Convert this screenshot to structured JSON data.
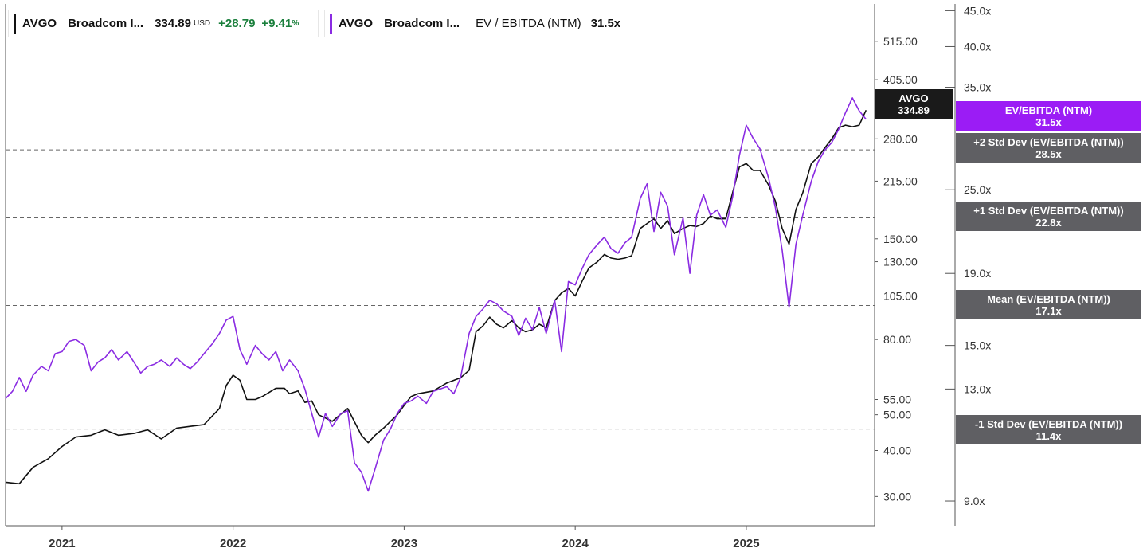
{
  "legend": {
    "price": {
      "ticker": "AVGO",
      "name": "Broadcom I...",
      "value": "334.89",
      "currency": "USD",
      "change": "+28.79",
      "change_pct": "+9.41",
      "pct_sign": "%",
      "color": "#111111"
    },
    "ev": {
      "ticker": "AVGO",
      "name": "Broadcom I...",
      "metric": "EV / EBITDA (NTM)",
      "value": "31.5x",
      "color": "#8a2be2"
    }
  },
  "tags": {
    "price": {
      "line1": "AVGO",
      "line2": "334.89"
    },
    "ev": {
      "line1": "EV/EBITDA (NTM)",
      "line2": "31.5x"
    },
    "sd_plus2": {
      "line1": "+2 Std Dev (EV/EBITDA (NTM))",
      "line2": "28.5x"
    },
    "sd_plus1": {
      "line1": "+1 Std Dev (EV/EBITDA (NTM))",
      "line2": "22.8x"
    },
    "mean": {
      "line1": "Mean (EV/EBITDA (NTM))",
      "line2": "17.1x"
    },
    "sd_minus1": {
      "line1": "-1 Std Dev (EV/EBITDA (NTM))",
      "line2": "11.4x"
    }
  },
  "colors": {
    "price": "#111111",
    "ev": "#8a2be2",
    "ev_tag": "#9b1cf5",
    "grey_tag": "#5f5f63",
    "dark_tag": "#1a1a1a"
  },
  "chart_data": {
    "type": "line",
    "x_labels": [
      "2021",
      "2022",
      "2023",
      "2024",
      "2025"
    ],
    "x_range": [
      2020.67,
      2025.75
    ],
    "left_axis": {
      "scale": "log",
      "ticks": [
        "515.00",
        "405.00",
        "280.00",
        "215.00",
        "150.00",
        "130.00",
        "105.00",
        "80.00",
        "55.00",
        "50.00",
        "40.00",
        "30.00"
      ],
      "range": [
        25,
        650
      ]
    },
    "right_axis": {
      "scale": "log",
      "ticks": [
        "45.0x",
        "40.0x",
        "35.0x",
        "25.0x",
        "19.0x",
        "15.0x",
        "13.0x",
        "9.0x"
      ],
      "range": [
        8.3,
        46
      ]
    },
    "series": [
      {
        "name": "AVGO",
        "axis": "left",
        "points": [
          [
            2020.67,
            32.8
          ],
          [
            2020.75,
            32.5
          ],
          [
            2020.83,
            36
          ],
          [
            2020.92,
            38
          ],
          [
            2021.0,
            41
          ],
          [
            2021.08,
            43.5
          ],
          [
            2021.17,
            44
          ],
          [
            2021.25,
            45.5
          ],
          [
            2021.33,
            44
          ],
          [
            2021.42,
            44.5
          ],
          [
            2021.5,
            45.5
          ],
          [
            2021.58,
            43
          ],
          [
            2021.67,
            46
          ],
          [
            2021.75,
            46.5
          ],
          [
            2021.83,
            47
          ],
          [
            2021.92,
            52
          ],
          [
            2021.96,
            60
          ],
          [
            2022.0,
            64
          ],
          [
            2022.04,
            62
          ],
          [
            2022.08,
            55
          ],
          [
            2022.13,
            55
          ],
          [
            2022.17,
            56
          ],
          [
            2022.25,
            59
          ],
          [
            2022.3,
            59
          ],
          [
            2022.33,
            57
          ],
          [
            2022.38,
            58
          ],
          [
            2022.42,
            54
          ],
          [
            2022.46,
            54.5
          ],
          [
            2022.5,
            50
          ],
          [
            2022.58,
            48
          ],
          [
            2022.67,
            52
          ],
          [
            2022.75,
            44
          ],
          [
            2022.79,
            42
          ],
          [
            2022.83,
            44
          ],
          [
            2022.88,
            46
          ],
          [
            2022.92,
            48
          ],
          [
            2022.96,
            50
          ],
          [
            2023.0,
            53
          ],
          [
            2023.04,
            56
          ],
          [
            2023.08,
            57
          ],
          [
            2023.17,
            58
          ],
          [
            2023.25,
            61
          ],
          [
            2023.33,
            63
          ],
          [
            2023.38,
            66
          ],
          [
            2023.42,
            84
          ],
          [
            2023.46,
            87
          ],
          [
            2023.5,
            92
          ],
          [
            2023.54,
            88
          ],
          [
            2023.58,
            86
          ],
          [
            2023.63,
            90
          ],
          [
            2023.67,
            86
          ],
          [
            2023.71,
            84
          ],
          [
            2023.75,
            85
          ],
          [
            2023.79,
            88
          ],
          [
            2023.83,
            86
          ],
          [
            2023.88,
            102
          ],
          [
            2023.92,
            107
          ],
          [
            2023.96,
            110
          ],
          [
            2024.0,
            105
          ],
          [
            2024.04,
            115
          ],
          [
            2024.08,
            125
          ],
          [
            2024.13,
            130
          ],
          [
            2024.17,
            136
          ],
          [
            2024.21,
            133
          ],
          [
            2024.25,
            132
          ],
          [
            2024.29,
            133
          ],
          [
            2024.33,
            135
          ],
          [
            2024.38,
            160
          ],
          [
            2024.42,
            165
          ],
          [
            2024.46,
            170
          ],
          [
            2024.5,
            160
          ],
          [
            2024.54,
            168
          ],
          [
            2024.58,
            155
          ],
          [
            2024.63,
            160
          ],
          [
            2024.67,
            163
          ],
          [
            2024.71,
            162
          ],
          [
            2024.75,
            165
          ],
          [
            2024.79,
            173
          ],
          [
            2024.83,
            170
          ],
          [
            2024.88,
            170
          ],
          [
            2024.92,
            200
          ],
          [
            2024.96,
            235
          ],
          [
            2025.0,
            240
          ],
          [
            2025.04,
            230
          ],
          [
            2025.08,
            230
          ],
          [
            2025.13,
            210
          ],
          [
            2025.17,
            190
          ],
          [
            2025.21,
            160
          ],
          [
            2025.25,
            145
          ],
          [
            2025.29,
            180
          ],
          [
            2025.33,
            200
          ],
          [
            2025.38,
            240
          ],
          [
            2025.42,
            250
          ],
          [
            2025.46,
            265
          ],
          [
            2025.5,
            280
          ],
          [
            2025.54,
            300
          ],
          [
            2025.58,
            305
          ],
          [
            2025.62,
            302
          ],
          [
            2025.66,
            305
          ],
          [
            2025.7,
            334.89
          ]
        ]
      },
      {
        "name": "EV / EBITDA (NTM)",
        "axis": "right",
        "points": [
          [
            2020.67,
            12.6
          ],
          [
            2020.71,
            12.9
          ],
          [
            2020.75,
            13.5
          ],
          [
            2020.79,
            12.9
          ],
          [
            2020.83,
            13.6
          ],
          [
            2020.88,
            14.0
          ],
          [
            2020.92,
            13.8
          ],
          [
            2020.96,
            14.6
          ],
          [
            2021.0,
            14.7
          ],
          [
            2021.04,
            15.2
          ],
          [
            2021.08,
            15.3
          ],
          [
            2021.13,
            15.0
          ],
          [
            2021.17,
            13.8
          ],
          [
            2021.21,
            14.2
          ],
          [
            2021.25,
            14.4
          ],
          [
            2021.29,
            14.8
          ],
          [
            2021.33,
            14.3
          ],
          [
            2021.38,
            14.7
          ],
          [
            2021.42,
            14.2
          ],
          [
            2021.46,
            13.7
          ],
          [
            2021.5,
            14.0
          ],
          [
            2021.54,
            14.1
          ],
          [
            2021.58,
            14.3
          ],
          [
            2021.63,
            14.0
          ],
          [
            2021.67,
            14.4
          ],
          [
            2021.71,
            14.1
          ],
          [
            2021.75,
            13.9
          ],
          [
            2021.79,
            14.2
          ],
          [
            2021.83,
            14.6
          ],
          [
            2021.88,
            15.1
          ],
          [
            2021.92,
            15.6
          ],
          [
            2021.96,
            16.3
          ],
          [
            2022.0,
            16.5
          ],
          [
            2022.04,
            14.8
          ],
          [
            2022.08,
            14.1
          ],
          [
            2022.13,
            15.0
          ],
          [
            2022.17,
            14.6
          ],
          [
            2022.21,
            14.3
          ],
          [
            2022.25,
            14.7
          ],
          [
            2022.29,
            13.8
          ],
          [
            2022.33,
            14.3
          ],
          [
            2022.38,
            13.8
          ],
          [
            2022.42,
            13.0
          ],
          [
            2022.46,
            12.0
          ],
          [
            2022.5,
            11.1
          ],
          [
            2022.54,
            12.0
          ],
          [
            2022.58,
            11.5
          ],
          [
            2022.63,
            12.0
          ],
          [
            2022.67,
            12.1
          ],
          [
            2022.71,
            10.2
          ],
          [
            2022.75,
            9.9
          ],
          [
            2022.79,
            9.3
          ],
          [
            2022.83,
            10.0
          ],
          [
            2022.88,
            11.0
          ],
          [
            2022.92,
            11.4
          ],
          [
            2022.96,
            12.0
          ],
          [
            2023.0,
            12.4
          ],
          [
            2023.04,
            12.5
          ],
          [
            2023.08,
            12.7
          ],
          [
            2023.13,
            12.4
          ],
          [
            2023.17,
            12.9
          ],
          [
            2023.21,
            13.0
          ],
          [
            2023.25,
            13.1
          ],
          [
            2023.29,
            12.8
          ],
          [
            2023.33,
            13.5
          ],
          [
            2023.38,
            15.6
          ],
          [
            2023.42,
            16.5
          ],
          [
            2023.46,
            16.9
          ],
          [
            2023.5,
            17.4
          ],
          [
            2023.54,
            17.2
          ],
          [
            2023.58,
            16.8
          ],
          [
            2023.63,
            16.5
          ],
          [
            2023.67,
            15.5
          ],
          [
            2023.71,
            16.4
          ],
          [
            2023.75,
            15.8
          ],
          [
            2023.79,
            17.0
          ],
          [
            2023.83,
            15.6
          ],
          [
            2023.88,
            17.4
          ],
          [
            2023.92,
            14.7
          ],
          [
            2023.96,
            18.5
          ],
          [
            2024.0,
            18.3
          ],
          [
            2024.04,
            19.3
          ],
          [
            2024.08,
            20.2
          ],
          [
            2024.13,
            20.9
          ],
          [
            2024.17,
            21.4
          ],
          [
            2024.21,
            20.6
          ],
          [
            2024.25,
            20.3
          ],
          [
            2024.29,
            21.0
          ],
          [
            2024.33,
            21.4
          ],
          [
            2024.38,
            24.3
          ],
          [
            2024.42,
            25.5
          ],
          [
            2024.46,
            21.8
          ],
          [
            2024.5,
            24.8
          ],
          [
            2024.54,
            23.7
          ],
          [
            2024.58,
            20.2
          ],
          [
            2024.63,
            22.8
          ],
          [
            2024.67,
            19.0
          ],
          [
            2024.71,
            23.0
          ],
          [
            2024.75,
            24.6
          ],
          [
            2024.79,
            23.0
          ],
          [
            2024.83,
            23.4
          ],
          [
            2024.88,
            22.1
          ],
          [
            2024.92,
            24.4
          ],
          [
            2024.96,
            28.0
          ],
          [
            2025.0,
            30.9
          ],
          [
            2025.04,
            29.6
          ],
          [
            2025.08,
            28.6
          ],
          [
            2025.13,
            26.0
          ],
          [
            2025.17,
            23.6
          ],
          [
            2025.21,
            20.5
          ],
          [
            2025.25,
            17.0
          ],
          [
            2025.29,
            20.9
          ],
          [
            2025.33,
            23.0
          ],
          [
            2025.38,
            25.7
          ],
          [
            2025.42,
            27.4
          ],
          [
            2025.46,
            28.5
          ],
          [
            2025.5,
            29.2
          ],
          [
            2025.54,
            30.5
          ],
          [
            2025.58,
            32.2
          ],
          [
            2025.62,
            33.8
          ],
          [
            2025.66,
            32.4
          ],
          [
            2025.7,
            31.5
          ]
        ]
      }
    ],
    "reference_lines": [
      {
        "name": "+2 Std Dev (EV/EBITDA (NTM))",
        "value": 28.5,
        "style": "dashed"
      },
      {
        "name": "+1 Std Dev (EV/EBITDA (NTM))",
        "value": 22.8,
        "style": "dashed"
      },
      {
        "name": "Mean (EV/EBITDA (NTM))",
        "value": 17.1,
        "style": "dashed"
      },
      {
        "name": "-1 Std Dev (EV/EBITDA (NTM))",
        "value": 11.4,
        "style": "dashed"
      }
    ],
    "grid": false
  }
}
